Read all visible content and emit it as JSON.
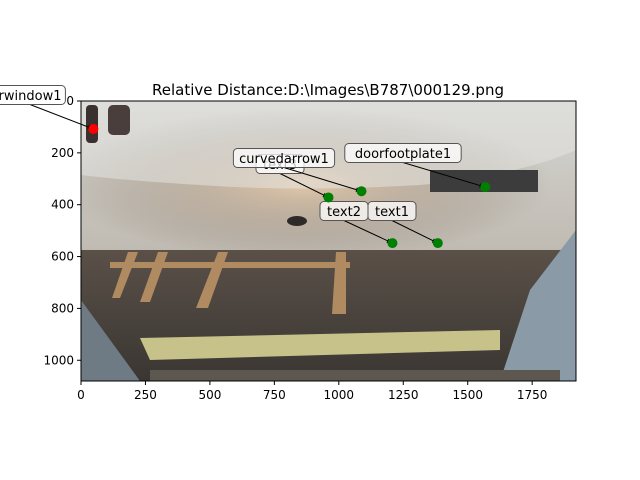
{
  "figure": {
    "title": "Relative Distance:D:\\Images\\B787\\000129.png"
  },
  "chart_data": {
    "type": "scatter",
    "title": "Relative Distance:D:\\Images\\B787\\000129.png",
    "xlabel": "",
    "ylabel": "",
    "xlim": [
      0,
      1920
    ],
    "ylim": [
      1080,
      0
    ],
    "y_inverted": true,
    "grid": false,
    "background": "photo of aircraft fuselage underside and hangar floor",
    "x_ticks": [
      "0",
      "250",
      "500",
      "750",
      "1000",
      "1250",
      "1500",
      "1750"
    ],
    "x_tick_values": [
      0,
      250,
      500,
      750,
      1000,
      1250,
      1500,
      1750
    ],
    "y_ticks": [
      "0",
      "200",
      "400",
      "600",
      "800",
      "1000"
    ],
    "y_tick_values": [
      0,
      200,
      400,
      600,
      800,
      1000
    ],
    "points": [
      {
        "label": "rwindow1",
        "x": 48,
        "y": 108,
        "color": "#ff0000"
      },
      {
        "label": "curvedarrow1",
        "x": 1088,
        "y": 348,
        "color": "#008000"
      },
      {
        "label": "text3",
        "x": 960,
        "y": 372,
        "color": "#008000"
      },
      {
        "label": "doorfootplate1",
        "x": 1568,
        "y": 332,
        "color": "#008000"
      },
      {
        "label": "text2",
        "x": 1208,
        "y": 548,
        "color": "#008000"
      },
      {
        "label": "text1",
        "x": 1384,
        "y": 548,
        "color": "#008000"
      }
    ]
  }
}
